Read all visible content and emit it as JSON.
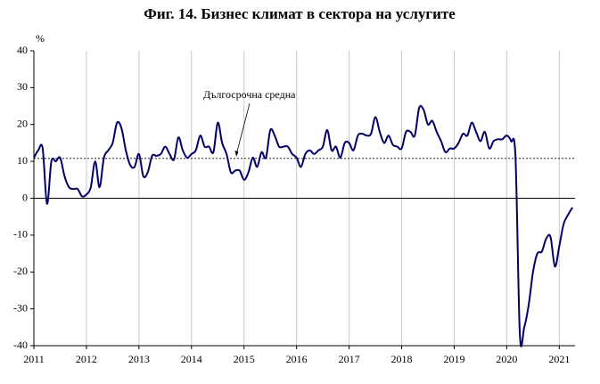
{
  "chart_data": {
    "type": "line",
    "title": "Фиг. 14. Бизнес климат в сектора на услугите",
    "y_label": "%",
    "xlim": [
      2011,
      2021.3
    ],
    "xticks": [
      2011,
      2012,
      2013,
      2014,
      2015,
      2016,
      2017,
      2018,
      2019,
      2020,
      2021
    ],
    "ylim": [
      -40,
      40
    ],
    "yticks": [
      -40,
      -30,
      -20,
      -10,
      0,
      10,
      20,
      30,
      40
    ],
    "grid": true,
    "reference_line": {
      "value": 10.8,
      "label": "Дългосрочна средна",
      "color": "#000000"
    },
    "series": [
      {
        "name": "Бизнес климат",
        "color": "#000066",
        "x": [
          2011,
          2011.083,
          2011.167,
          2011.25,
          2011.333,
          2011.417,
          2011.5,
          2011.583,
          2011.667,
          2011.75,
          2011.833,
          2011.917,
          2012,
          2012.083,
          2012.167,
          2012.25,
          2012.333,
          2012.417,
          2012.5,
          2012.583,
          2012.667,
          2012.75,
          2012.833,
          2012.917,
          2013,
          2013.083,
          2013.167,
          2013.25,
          2013.333,
          2013.417,
          2013.5,
          2013.583,
          2013.667,
          2013.75,
          2013.833,
          2013.917,
          2014,
          2014.083,
          2014.167,
          2014.25,
          2014.333,
          2014.417,
          2014.5,
          2014.583,
          2014.667,
          2014.75,
          2014.833,
          2014.917,
          2015,
          2015.083,
          2015.167,
          2015.25,
          2015.333,
          2015.417,
          2015.5,
          2015.583,
          2015.667,
          2015.75,
          2015.833,
          2015.917,
          2016,
          2016.083,
          2016.167,
          2016.25,
          2016.333,
          2016.417,
          2016.5,
          2016.583,
          2016.667,
          2016.75,
          2016.833,
          2016.917,
          2017,
          2017.083,
          2017.167,
          2017.25,
          2017.333,
          2017.417,
          2017.5,
          2017.583,
          2017.667,
          2017.75,
          2017.833,
          2017.917,
          2018,
          2018.083,
          2018.167,
          2018.25,
          2018.333,
          2018.417,
          2018.5,
          2018.583,
          2018.667,
          2018.75,
          2018.833,
          2018.917,
          2019,
          2019.083,
          2019.167,
          2019.25,
          2019.333,
          2019.417,
          2019.5,
          2019.583,
          2019.667,
          2019.75,
          2019.833,
          2019.917,
          2020,
          2020.083,
          2020.167,
          2020.25,
          2020.333,
          2020.417,
          2020.5,
          2020.583,
          2020.667,
          2020.75,
          2020.833,
          2020.917,
          2021,
          2021.083,
          2021.167,
          2021.25
        ],
        "values": [
          11,
          13,
          13.5,
          -1.5,
          10,
          10,
          11,
          6,
          3,
          2.5,
          2.5,
          0.5,
          1,
          3,
          10,
          3,
          11,
          13,
          15,
          20.5,
          19,
          13,
          9,
          8.5,
          12,
          6,
          7,
          11.5,
          11.5,
          12,
          14,
          12,
          10.5,
          16.5,
          13,
          11,
          12,
          13,
          17,
          14,
          14,
          12.5,
          20.5,
          15,
          12,
          7,
          7.5,
          7.5,
          5,
          7,
          11,
          8.5,
          12.5,
          11,
          18.5,
          17,
          14,
          14,
          14,
          12,
          11,
          8.5,
          12,
          13,
          12,
          13,
          14,
          18.5,
          13,
          14,
          11,
          15,
          15,
          13,
          17,
          17.5,
          17,
          17.5,
          22,
          18,
          15,
          17,
          14.5,
          14,
          13.5,
          18,
          18,
          17,
          24.5,
          24,
          20,
          21,
          18,
          15.5,
          12.5,
          13.5,
          13.5,
          15,
          17.5,
          17,
          20.5,
          18,
          15.5,
          18,
          13.5,
          15.5,
          16,
          16,
          17,
          15.5,
          11,
          -37,
          -35,
          -29,
          -20,
          -15,
          -14.5,
          -11,
          -10.5,
          -18.5,
          -13,
          -7,
          -4.5,
          -2.5
        ]
      }
    ]
  }
}
